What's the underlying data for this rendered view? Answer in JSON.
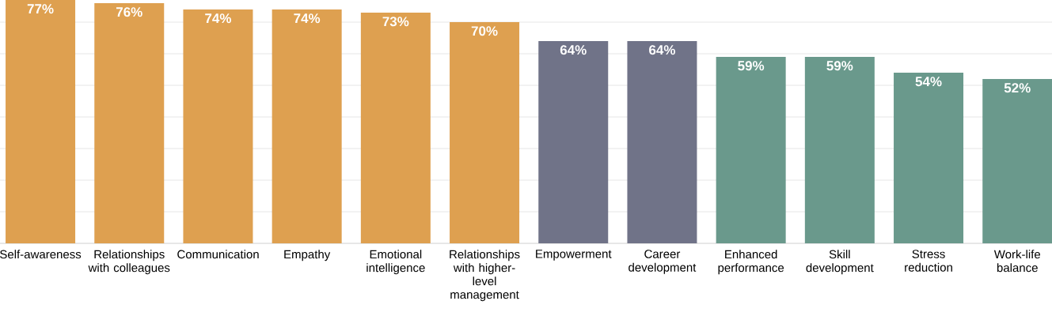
{
  "chart_data": {
    "type": "bar",
    "categories": [
      "Self-awareness",
      "Relationships with colleagues",
      "Communication",
      "Empathy",
      "Emotional intelligence",
      "Relationships with higher-level management",
      "Empowerment",
      "Career development",
      "Enhanced performance",
      "Skill development",
      "Stress reduction",
      "Work-life balance"
    ],
    "values": [
      77,
      76,
      74,
      74,
      73,
      70,
      64,
      64,
      59,
      59,
      54,
      52
    ],
    "value_labels": [
      "77%",
      "76%",
      "74%",
      "74%",
      "73%",
      "70%",
      "64%",
      "64%",
      "59%",
      "59%",
      "54%",
      "52%"
    ],
    "colors": [
      "#dea050",
      "#dea050",
      "#dea050",
      "#dea050",
      "#dea050",
      "#dea050",
      "#707388",
      "#707388",
      "#6a998c",
      "#6a998c",
      "#6a998c",
      "#6a998c"
    ],
    "grid": "y"
  }
}
